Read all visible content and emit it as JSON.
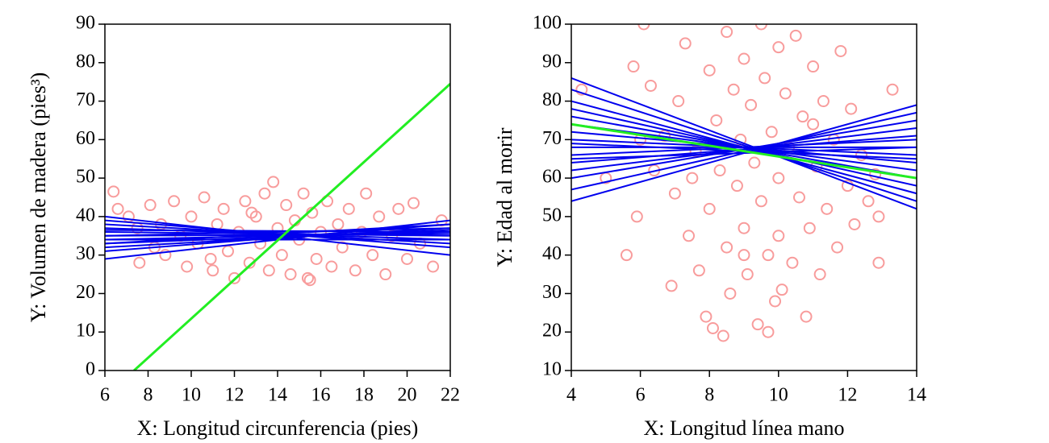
{
  "chart_data": [
    {
      "type": "scatter",
      "xlabel": "X: Longitud circunferencia (pies)",
      "ylabel": "Y: Volumen de madera (pies³)",
      "xlim": [
        6,
        22
      ],
      "ylim": [
        0,
        90
      ],
      "xticks": [
        6,
        8,
        10,
        12,
        14,
        16,
        18,
        20,
        22
      ],
      "yticks": [
        0,
        10,
        20,
        30,
        40,
        50,
        60,
        70,
        80,
        90
      ],
      "points": {
        "color": "#f89c9c",
        "x": [
          6.4,
          6.6,
          7.1,
          7.5,
          7.6,
          8.1,
          8.3,
          8.6,
          8.8,
          9.2,
          9.5,
          9.8,
          10,
          10.3,
          10.6,
          10.9,
          11.2,
          11.5,
          11.7,
          12,
          12.2,
          12.5,
          12.7,
          13,
          13.2,
          13.4,
          13.6,
          13.8,
          14,
          14.2,
          14.4,
          14.6,
          14.8,
          15,
          15.2,
          15.4,
          15.6,
          15.8,
          16,
          16.3,
          16.5,
          16.8,
          17,
          17.3,
          17.6,
          17.9,
          18.1,
          18.4,
          18.7,
          19,
          19.3,
          19.6,
          20,
          20.3,
          20.6,
          21.2,
          21.6,
          11,
          15.5,
          12.8
        ],
        "y": [
          46.5,
          42,
          40,
          37,
          28,
          43,
          32,
          38,
          30,
          44,
          35,
          27,
          40,
          33,
          45,
          29,
          38,
          42,
          31,
          24,
          36,
          44,
          28,
          40,
          33,
          46,
          26,
          49,
          37,
          30,
          43,
          25,
          39,
          34,
          46,
          24,
          41,
          29,
          36,
          44,
          27,
          38,
          32,
          42,
          26,
          36,
          46,
          30,
          40,
          25,
          35,
          42,
          29,
          43.5,
          33,
          27,
          39,
          26,
          23.5,
          41
        ]
      },
      "lines": [
        {
          "color": "#0000ee",
          "x": [
            6,
            22
          ],
          "y": [
            29,
            39
          ]
        },
        {
          "color": "#0000ee",
          "x": [
            6,
            22
          ],
          "y": [
            31,
            38
          ]
        },
        {
          "color": "#0000ee",
          "x": [
            6,
            22
          ],
          "y": [
            32,
            37
          ]
        },
        {
          "color": "#0000ee",
          "x": [
            6,
            22
          ],
          "y": [
            33,
            36.5
          ]
        },
        {
          "color": "#0000ee",
          "x": [
            6,
            22
          ],
          "y": [
            34,
            36
          ]
        },
        {
          "color": "#0000ee",
          "x": [
            6,
            22
          ],
          "y": [
            35,
            35.5
          ]
        },
        {
          "color": "#0000ee",
          "x": [
            6,
            22
          ],
          "y": [
            36,
            35
          ]
        },
        {
          "color": "#0000ee",
          "x": [
            6,
            22
          ],
          "y": [
            37,
            34
          ]
        },
        {
          "color": "#0000ee",
          "x": [
            6,
            22
          ],
          "y": [
            38,
            33
          ]
        },
        {
          "color": "#0000ee",
          "x": [
            6,
            22
          ],
          "y": [
            39,
            32
          ]
        },
        {
          "color": "#0000ee",
          "x": [
            6,
            22
          ],
          "y": [
            40,
            30
          ]
        },
        {
          "color": "#0000ee",
          "x": [
            6,
            22
          ],
          "y": [
            36.5,
            36
          ]
        },
        {
          "color": "#0000ee",
          "x": [
            6,
            22
          ],
          "y": [
            35,
            37
          ]
        },
        {
          "color": "#0000ee",
          "x": [
            6,
            22
          ],
          "y": [
            33,
            38
          ]
        },
        {
          "color": "#0000ee",
          "x": [
            6,
            22
          ],
          "y": [
            34,
            34
          ]
        },
        {
          "color": "#22ee22",
          "x": [
            7.35,
            22
          ],
          "y": [
            0,
            74.5
          ]
        }
      ]
    },
    {
      "type": "scatter",
      "xlabel": "X: Longitud línea mano",
      "ylabel": "Y: Edad al morir",
      "xlim": [
        4,
        14
      ],
      "ylim": [
        10,
        100
      ],
      "xticks": [
        4,
        6,
        8,
        10,
        12,
        14
      ],
      "yticks": [
        10,
        20,
        30,
        40,
        50,
        60,
        70,
        80,
        90,
        100
      ],
      "points": {
        "color": "#f89c9c",
        "x": [
          4.3,
          5.6,
          5.8,
          5.9,
          6.1,
          6.3,
          6.4,
          6.7,
          6.9,
          7,
          7.1,
          7.3,
          7.4,
          7.6,
          7.7,
          7.9,
          8,
          8,
          8.1,
          8.2,
          8.3,
          8.4,
          8.5,
          8.5,
          8.6,
          8.7,
          8.8,
          8.9,
          9,
          9,
          9.1,
          9.2,
          9.3,
          9.4,
          9.5,
          9.5,
          9.6,
          9.7,
          9.7,
          9.8,
          9.9,
          10,
          10,
          10,
          10.1,
          10.2,
          10.3,
          10.4,
          10.5,
          10.6,
          10.7,
          10.8,
          10.9,
          11,
          11.1,
          11.2,
          11.3,
          11.4,
          11.6,
          11.7,
          11.8,
          12,
          12.1,
          12.2,
          12.4,
          12.6,
          12.8,
          12.9,
          13.3,
          12.9,
          5,
          6,
          7.5,
          11,
          9
        ],
        "y": [
          83,
          40,
          89,
          50,
          100,
          84,
          62,
          71,
          32,
          56,
          80,
          95,
          45,
          67,
          36,
          24,
          88,
          52,
          21,
          75,
          62,
          19,
          98,
          42,
          30,
          83,
          58,
          70,
          91,
          47,
          35,
          79,
          64,
          22,
          100,
          54,
          86,
          40,
          20,
          72,
          28,
          94,
          60,
          45,
          31,
          82,
          68,
          38,
          97,
          55,
          76,
          24,
          47,
          89,
          63,
          35,
          80,
          52,
          70,
          42,
          93,
          58,
          78,
          48,
          66,
          54,
          61,
          50,
          83,
          38,
          60,
          70,
          60,
          74,
          40
        ]
      },
      "lines": [
        {
          "color": "#0000ee",
          "x": [
            4,
            14
          ],
          "y": [
            54,
            79
          ]
        },
        {
          "color": "#0000ee",
          "x": [
            4,
            14
          ],
          "y": [
            57,
            77
          ]
        },
        {
          "color": "#0000ee",
          "x": [
            4,
            14
          ],
          "y": [
            60,
            75
          ]
        },
        {
          "color": "#0000ee",
          "x": [
            4,
            14
          ],
          "y": [
            62,
            73
          ]
        },
        {
          "color": "#0000ee",
          "x": [
            4,
            14
          ],
          "y": [
            64,
            71
          ]
        },
        {
          "color": "#0000ee",
          "x": [
            4,
            14
          ],
          "y": [
            66,
            70
          ]
        },
        {
          "color": "#0000ee",
          "x": [
            4,
            14
          ],
          "y": [
            68,
            68
          ]
        },
        {
          "color": "#0000ee",
          "x": [
            4,
            14
          ],
          "y": [
            70,
            66
          ]
        },
        {
          "color": "#0000ee",
          "x": [
            4,
            14
          ],
          "y": [
            72,
            64
          ]
        },
        {
          "color": "#0000ee",
          "x": [
            4,
            14
          ],
          "y": [
            74,
            62
          ]
        },
        {
          "color": "#0000ee",
          "x": [
            4,
            14
          ],
          "y": [
            76,
            60
          ]
        },
        {
          "color": "#0000ee",
          "x": [
            4,
            14
          ],
          "y": [
            78,
            58
          ]
        },
        {
          "color": "#0000ee",
          "x": [
            4,
            14
          ],
          "y": [
            80,
            56
          ]
        },
        {
          "color": "#0000ee",
          "x": [
            4,
            14
          ],
          "y": [
            83,
            54
          ]
        },
        {
          "color": "#0000ee",
          "x": [
            4,
            14
          ],
          "y": [
            86,
            52
          ]
        },
        {
          "color": "#0000ee",
          "x": [
            4,
            14
          ],
          "y": [
            65,
            68
          ]
        },
        {
          "color": "#0000ee",
          "x": [
            4,
            14
          ],
          "y": [
            69,
            65
          ]
        },
        {
          "color": "#22ee22",
          "x": [
            4,
            14
          ],
          "y": [
            74,
            60
          ]
        }
      ]
    }
  ]
}
